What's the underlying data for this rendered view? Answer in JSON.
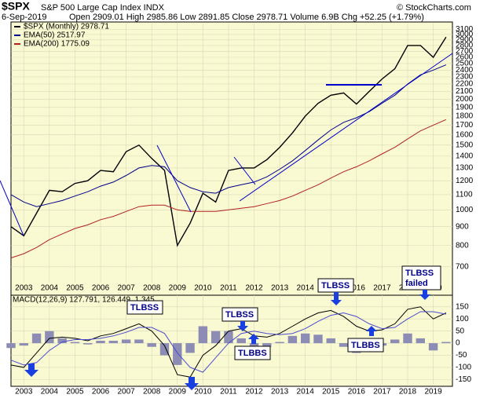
{
  "chart_data": [
    {
      "type": "line",
      "title": "$SPX",
      "subtitle": "S&P 500 Large Cap Index INDX",
      "watermark": "© StockCharts.com",
      "date": "6-Sep-2019",
      "quote": "Open 2909.01  High 2985.86  Low 2891.85  Close 2978.71  Volume 6.9B  Chg +52.25 (+1.79%)",
      "x": [
        2002.5,
        2003.0,
        2003.5,
        2004.0,
        2004.5,
        2005.0,
        2005.5,
        2006.0,
        2006.5,
        2007.0,
        2007.5,
        2008.0,
        2008.5,
        2009.0,
        2009.5,
        2010.0,
        2010.5,
        2011.0,
        2011.5,
        2012.0,
        2012.5,
        2013.0,
        2013.5,
        2014.0,
        2014.5,
        2015.0,
        2015.5,
        2016.0,
        2016.5,
        2017.0,
        2017.5,
        2018.0,
        2018.5,
        2019.0,
        2019.5
      ],
      "xlim": [
        2002.5,
        2019.75
      ],
      "xticks": [
        2003,
        2004,
        2005,
        2006,
        2007,
        2008,
        2009,
        2010,
        2011,
        2012,
        2013,
        2014,
        2015,
        2016,
        2017,
        2018,
        2019
      ],
      "ylim": [
        640,
        3150
      ],
      "log_scale": true,
      "grid": true,
      "yticks": [
        700,
        800,
        900,
        1000,
        1100,
        1200,
        1300,
        1400,
        1500,
        1600,
        1700,
        1800,
        1900,
        2000,
        2100,
        2200,
        2300,
        2400,
        2500,
        2600,
        2700,
        2800,
        2900,
        3000,
        3100
      ],
      "series": [
        {
          "name": "$SPX (Monthly) 2978.71",
          "color": "#000000",
          "values": [
            900,
            850,
            980,
            1130,
            1120,
            1180,
            1200,
            1280,
            1270,
            1440,
            1500,
            1380,
            1280,
            800,
            920,
            1110,
            1050,
            1280,
            1300,
            1300,
            1370,
            1480,
            1620,
            1800,
            1950,
            2050,
            2080,
            1940,
            2100,
            2270,
            2420,
            2800,
            2800,
            2600,
            2950
          ]
        },
        {
          "name": "EMA(50) 2517.97",
          "color": "#00008b",
          "values": [
            1100,
            1050,
            1020,
            1040,
            1060,
            1090,
            1120,
            1160,
            1190,
            1240,
            1300,
            1320,
            1310,
            1200,
            1150,
            1120,
            1110,
            1150,
            1170,
            1190,
            1230,
            1290,
            1360,
            1450,
            1550,
            1650,
            1730,
            1780,
            1850,
            1950,
            2050,
            2200,
            2330,
            2400,
            2480
          ]
        },
        {
          "name": "EMA(200) 1775.09",
          "color": "#b22222",
          "values": [
            740,
            760,
            790,
            830,
            860,
            890,
            910,
            940,
            960,
            990,
            1020,
            1030,
            1030,
            1000,
            990,
            990,
            990,
            1000,
            1010,
            1020,
            1040,
            1060,
            1090,
            1130,
            1170,
            1220,
            1270,
            1310,
            1360,
            1420,
            1480,
            1560,
            1640,
            1700,
            1760
          ]
        }
      ]
    },
    {
      "type": "line",
      "title": "MACD(12,26,9) 127.791, 126.449, 1.345",
      "x": [
        2002.5,
        2003.0,
        2003.5,
        2004.0,
        2004.5,
        2005.0,
        2005.5,
        2006.0,
        2006.5,
        2007.0,
        2007.5,
        2008.0,
        2008.5,
        2009.0,
        2009.5,
        2010.0,
        2010.5,
        2011.0,
        2011.5,
        2012.0,
        2012.5,
        2013.0,
        2013.5,
        2014.0,
        2014.5,
        2015.0,
        2015.5,
        2016.0,
        2016.5,
        2017.0,
        2017.5,
        2018.0,
        2018.5,
        2019.0,
        2019.5
      ],
      "xlim": [
        2002.5,
        2019.75
      ],
      "xticks": [
        2003,
        2004,
        2005,
        2006,
        2007,
        2008,
        2009,
        2010,
        2011,
        2012,
        2013,
        2014,
        2015,
        2016,
        2017,
        2018,
        2019
      ],
      "ylim": [
        -165,
        185
      ],
      "yticks": [
        -150,
        -100,
        -50,
        0,
        50,
        100,
        150
      ],
      "grid": true,
      "series": [
        {
          "type": "bar",
          "color": "#8c8cb4",
          "values": [
            -20,
            -10,
            40,
            50,
            20,
            5,
            -5,
            10,
            10,
            15,
            15,
            -15,
            -50,
            -90,
            -40,
            70,
            50,
            50,
            20,
            -20,
            -15,
            5,
            30,
            40,
            35,
            20,
            -15,
            -40,
            -30,
            -10,
            15,
            40,
            20,
            -30,
            5
          ]
        },
        {
          "type": "line",
          "color": "#000000",
          "values": [
            -90,
            -100,
            -40,
            20,
            25,
            20,
            10,
            30,
            40,
            60,
            80,
            50,
            -10,
            -130,
            -140,
            -50,
            -10,
            50,
            60,
            30,
            25,
            40,
            70,
            100,
            125,
            135,
            110,
            70,
            50,
            55,
            80,
            140,
            150,
            100,
            125
          ]
        },
        {
          "type": "line",
          "color": "#4b4bd0",
          "values": [
            -70,
            -90,
            -80,
            -30,
            5,
            15,
            15,
            20,
            30,
            45,
            65,
            65,
            40,
            -40,
            -100,
            -120,
            -60,
            0,
            40,
            50,
            40,
            35,
            40,
            60,
            90,
            115,
            125,
            110,
            80,
            60,
            65,
            100,
            130,
            130,
            120
          ]
        }
      ],
      "annotations": [
        "TLBSS",
        "TLBSS",
        "TLBBS",
        "TLBSS",
        "TLBBS",
        "TLBSS",
        "failed"
      ]
    }
  ]
}
